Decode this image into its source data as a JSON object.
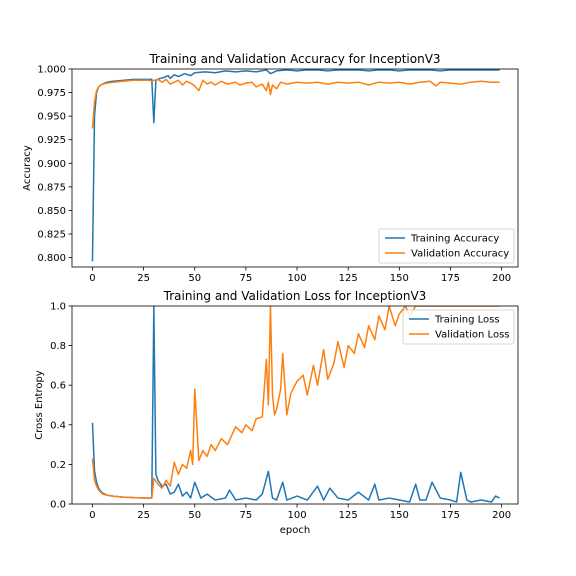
{
  "chart_data": [
    {
      "type": "line",
      "title": "Training and Validation Accuracy for InceptionV3",
      "xlabel": "",
      "ylabel": "Accuracy",
      "xlim": [
        -10,
        208
      ],
      "ylim": [
        0.79,
        1.0
      ],
      "xticks": [
        "0",
        "25",
        "50",
        "75",
        "100",
        "125",
        "150",
        "175",
        "200"
      ],
      "yticks": [
        "0.800",
        "0.825",
        "0.850",
        "0.875",
        "0.900",
        "0.925",
        "0.950",
        "0.975",
        "1.000"
      ],
      "grid": false,
      "legend_position": "lower-right",
      "series": [
        {
          "name": "Training Accuracy",
          "color": "#1f77b4",
          "x": [
            0,
            1,
            2,
            3,
            4,
            5,
            7,
            10,
            15,
            20,
            25,
            28,
            29,
            30,
            31,
            33,
            35,
            37,
            38,
            40,
            42,
            45,
            48,
            50,
            55,
            60,
            65,
            70,
            75,
            80,
            85,
            87,
            90,
            95,
            100,
            105,
            110,
            115,
            120,
            125,
            130,
            135,
            140,
            145,
            150,
            155,
            160,
            165,
            170,
            175,
            180,
            185,
            190,
            195,
            199
          ],
          "y": [
            0.796,
            0.95,
            0.975,
            0.981,
            0.983,
            0.984,
            0.986,
            0.987,
            0.988,
            0.989,
            0.989,
            0.989,
            0.989,
            0.943,
            0.988,
            0.99,
            0.991,
            0.993,
            0.99,
            0.994,
            0.992,
            0.995,
            0.993,
            0.996,
            0.997,
            0.996,
            0.998,
            0.997,
            0.998,
            0.997,
            0.999,
            0.995,
            0.998,
            0.999,
            0.998,
            0.999,
            0.999,
            0.998,
            0.999,
            0.999,
            0.999,
            0.998,
            0.999,
            0.999,
            0.998,
            0.999,
            0.999,
            0.999,
            0.998,
            0.999,
            0.999,
            0.999,
            0.999,
            0.999,
            0.999
          ]
        },
        {
          "name": "Validation Accuracy",
          "color": "#ff7f0e",
          "x": [
            0,
            1,
            2,
            3,
            4,
            5,
            7,
            10,
            15,
            20,
            25,
            28,
            29,
            30,
            32,
            34,
            36,
            38,
            40,
            42,
            44,
            46,
            48,
            50,
            52,
            54,
            56,
            58,
            60,
            63,
            66,
            70,
            72,
            75,
            78,
            80,
            83,
            85,
            86,
            87,
            88,
            90,
            92,
            95,
            100,
            105,
            110,
            115,
            120,
            125,
            130,
            135,
            140,
            145,
            150,
            155,
            160,
            165,
            168,
            170,
            175,
            180,
            185,
            190,
            195,
            199
          ],
          "y": [
            0.937,
            0.965,
            0.977,
            0.981,
            0.983,
            0.984,
            0.985,
            0.986,
            0.987,
            0.988,
            0.988,
            0.988,
            0.987,
            0.988,
            0.989,
            0.986,
            0.989,
            0.984,
            0.986,
            0.988,
            0.983,
            0.987,
            0.985,
            0.982,
            0.977,
            0.988,
            0.984,
            0.986,
            0.983,
            0.987,
            0.984,
            0.986,
            0.983,
            0.985,
            0.986,
            0.981,
            0.984,
            0.977,
            0.986,
            0.973,
            0.983,
            0.979,
            0.986,
            0.984,
            0.986,
            0.985,
            0.986,
            0.984,
            0.986,
            0.985,
            0.986,
            0.983,
            0.986,
            0.985,
            0.986,
            0.984,
            0.986,
            0.987,
            0.982,
            0.986,
            0.985,
            0.984,
            0.986,
            0.987,
            0.986,
            0.986
          ]
        }
      ]
    },
    {
      "type": "line",
      "title": "Training and Validation Loss for InceptionV3",
      "xlabel": "epoch",
      "ylabel": "Cross Entropy",
      "xlim": [
        -10,
        208
      ],
      "ylim": [
        0.0,
        1.0
      ],
      "xticks": [
        "0",
        "25",
        "50",
        "75",
        "100",
        "125",
        "150",
        "175",
        "200"
      ],
      "yticks": [
        "0.0",
        "0.2",
        "0.4",
        "0.6",
        "0.8",
        "1.0"
      ],
      "grid": false,
      "legend_position": "top-right",
      "series": [
        {
          "name": "Training Loss",
          "color": "#1f77b4",
          "x": [
            0,
            1,
            2,
            3,
            4,
            5,
            7,
            10,
            15,
            20,
            25,
            28,
            29,
            30,
            31,
            32,
            34,
            36,
            38,
            40,
            42,
            44,
            46,
            48,
            50,
            53,
            56,
            60,
            65,
            67,
            70,
            75,
            80,
            83,
            86,
            88,
            90,
            93,
            95,
            100,
            105,
            110,
            113,
            116,
            120,
            125,
            130,
            135,
            138,
            140,
            145,
            150,
            155,
            158,
            160,
            163,
            166,
            170,
            175,
            178,
            180,
            183,
            185,
            190,
            195,
            197,
            199
          ],
          "y": [
            0.41,
            0.17,
            0.11,
            0.08,
            0.065,
            0.055,
            0.045,
            0.04,
            0.035,
            0.032,
            0.03,
            0.03,
            0.03,
            1.0,
            0.15,
            0.12,
            0.09,
            0.1,
            0.05,
            0.06,
            0.1,
            0.04,
            0.06,
            0.03,
            0.11,
            0.03,
            0.05,
            0.02,
            0.03,
            0.07,
            0.02,
            0.03,
            0.02,
            0.05,
            0.165,
            0.03,
            0.02,
            0.11,
            0.02,
            0.04,
            0.02,
            0.09,
            0.02,
            0.08,
            0.03,
            0.02,
            0.06,
            0.02,
            0.1,
            0.02,
            0.03,
            0.02,
            0.01,
            0.1,
            0.02,
            0.02,
            0.11,
            0.03,
            0.02,
            0.01,
            0.16,
            0.02,
            0.01,
            0.02,
            0.01,
            0.04,
            0.03
          ]
        },
        {
          "name": "Validation Loss",
          "color": "#ff7f0e",
          "x": [
            0,
            1,
            2,
            3,
            4,
            5,
            7,
            10,
            15,
            20,
            25,
            28,
            29,
            30,
            32,
            34,
            36,
            38,
            40,
            42,
            44,
            46,
            48,
            49,
            50,
            52,
            54,
            56,
            58,
            60,
            63,
            66,
            70,
            73,
            75,
            78,
            80,
            83,
            85,
            86,
            87,
            88,
            89,
            90,
            92,
            93,
            95,
            97,
            100,
            103,
            105,
            108,
            110,
            113,
            115,
            118,
            120,
            123,
            125,
            128,
            130,
            133,
            135,
            138,
            140,
            143,
            145,
            148,
            150,
            153,
            155,
            158,
            160,
            163,
            165,
            168,
            170,
            173,
            175,
            178,
            180,
            183,
            185,
            188,
            190,
            193,
            195,
            198,
            199
          ],
          "y": [
            0.23,
            0.12,
            0.09,
            0.07,
            0.06,
            0.05,
            0.045,
            0.04,
            0.035,
            0.032,
            0.03,
            0.03,
            0.03,
            0.13,
            0.1,
            0.08,
            0.12,
            0.09,
            0.21,
            0.15,
            0.2,
            0.18,
            0.27,
            0.2,
            0.58,
            0.22,
            0.27,
            0.24,
            0.3,
            0.27,
            0.33,
            0.3,
            0.39,
            0.36,
            0.4,
            0.37,
            0.43,
            0.44,
            0.73,
            0.5,
            1.0,
            0.55,
            0.45,
            0.48,
            0.58,
            0.76,
            0.45,
            0.56,
            0.62,
            0.65,
            0.55,
            0.7,
            0.6,
            0.78,
            0.63,
            0.71,
            0.82,
            0.69,
            0.8,
            0.76,
            0.86,
            0.79,
            0.9,
            0.83,
            0.95,
            0.88,
            1.0,
            0.9,
            0.96,
            1.0,
            0.95,
            1.0,
            1.0,
            1.0,
            1.0,
            1.0,
            1.0,
            1.0,
            1.0,
            1.0,
            1.0,
            1.0,
            1.0,
            1.0,
            1.0,
            1.0,
            1.0,
            1.0,
            1.0
          ]
        }
      ]
    }
  ]
}
